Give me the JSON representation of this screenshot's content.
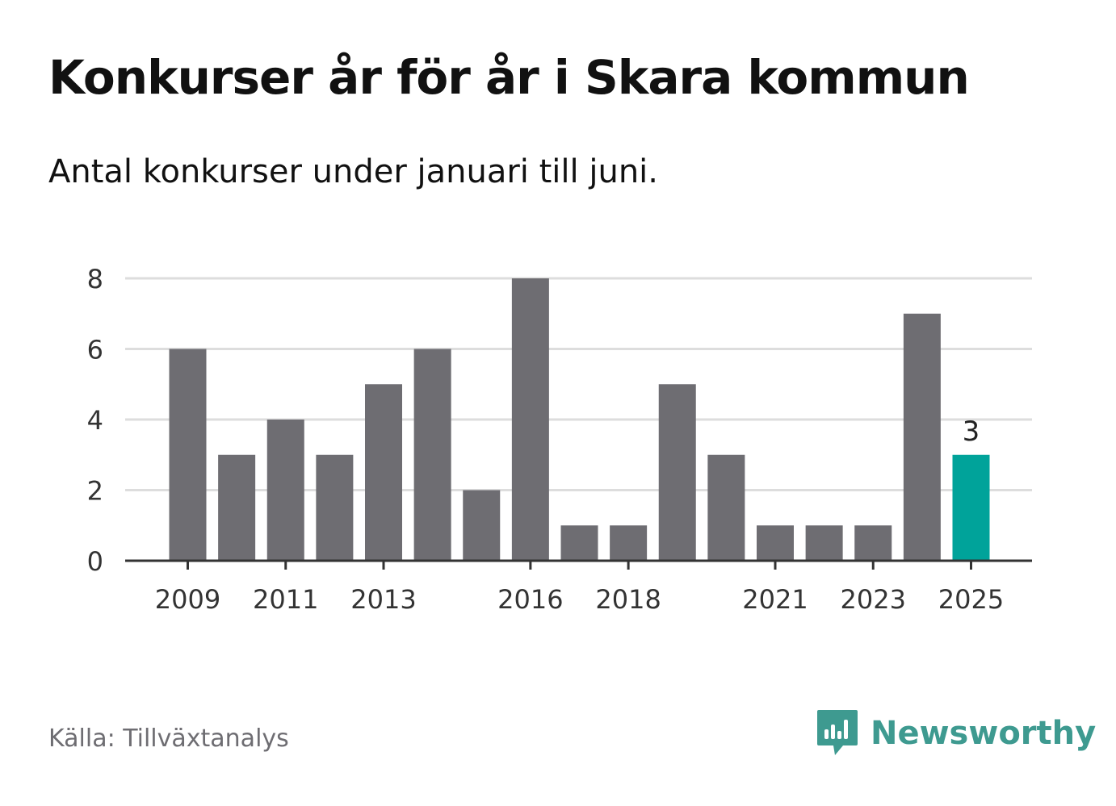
{
  "title": "Konkurser år för år i Skara kommun",
  "subtitle": "Antal konkurser under januari till juni.",
  "source": "Källa: Tillväxtanalys",
  "brand": {
    "name": "Newsworthy",
    "icon": "newsworthy-logo-icon",
    "color": "#3e9a90"
  },
  "colors": {
    "bar": "#6e6d72",
    "highlight": "#00a39a",
    "grid": "#dddddd",
    "axis": "#333333"
  },
  "chart_data": {
    "type": "bar",
    "title": "Konkurser år för år i Skara kommun",
    "subtitle": "Antal konkurser under januari till juni.",
    "categories": [
      "2009",
      "2010",
      "2011",
      "2012",
      "2013",
      "2014",
      "2015",
      "2016",
      "2017",
      "2018",
      "2019",
      "2020",
      "2021",
      "2022",
      "2023",
      "2024",
      "2025"
    ],
    "values": [
      6,
      3,
      4,
      3,
      5,
      6,
      2,
      8,
      1,
      1,
      5,
      3,
      1,
      1,
      1,
      7,
      3
    ],
    "xticks": [
      "2009",
      "2011",
      "2013",
      "2016",
      "2018",
      "2021",
      "2023",
      "2025"
    ],
    "yticks": [
      0,
      2,
      4,
      6,
      8
    ],
    "ylim": [
      0,
      8
    ],
    "grid": true,
    "highlight": {
      "category": "2025",
      "value": 3,
      "label": "3"
    }
  }
}
